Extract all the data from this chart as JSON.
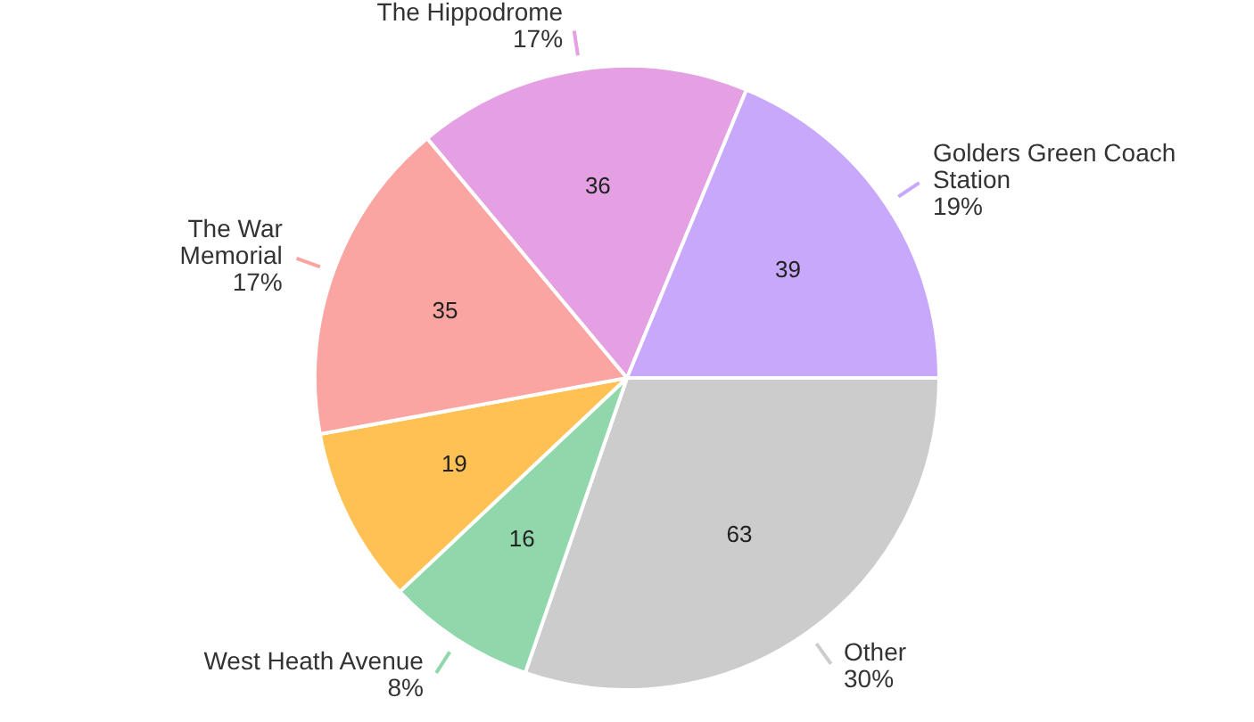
{
  "chart_data": {
    "type": "pie",
    "categories": [
      "Other",
      "West Heath Avenue",
      null,
      "The War Memorial",
      "The Hippodrome",
      "Golders Green Coach Station"
    ],
    "values": [
      63,
      16,
      19,
      35,
      36,
      39
    ],
    "colors": [
      "#cccccc",
      "#90d8ab",
      "#ffc154",
      "#fba5a2",
      "#e4a0e3",
      "#c7a8fb"
    ],
    "annotations": [
      "30%",
      "8%",
      "17%",
      "17%",
      "19%"
    ],
    "data_labels": true,
    "legend": false
  }
}
